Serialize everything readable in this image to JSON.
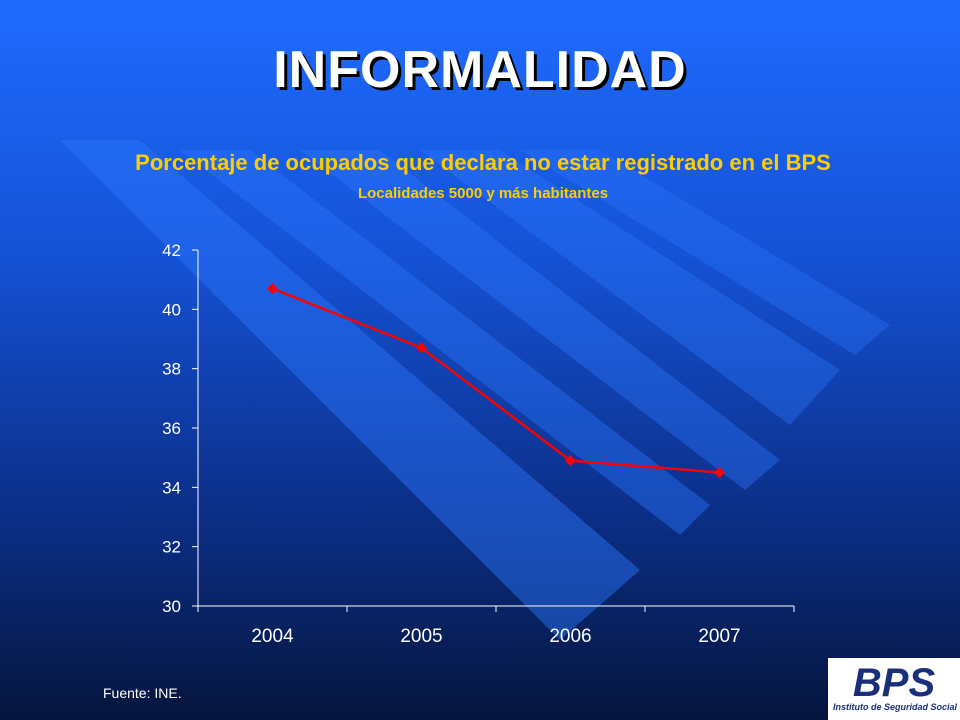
{
  "slide": {
    "title": "INFORMALIDAD",
    "subtitle": "Porcentaje de ocupados que declara no estar registrado en el BPS",
    "subtitle2": "Localidades 5000 y más habitantes",
    "source": "Fuente: INE.",
    "logo_text": "BPS",
    "logo_caption": "Instituto de Seguridad Social"
  },
  "colors": {
    "background_top": "#1f6bff",
    "background_bottom": "#05153d",
    "title": "#ffffff",
    "subtitle": "#ffcc00",
    "series": "#ff0000",
    "axis": "#ffffff",
    "logo": "#1a2f7a"
  },
  "chart_data": {
    "type": "line",
    "categories": [
      "2004",
      "2005",
      "2006",
      "2007"
    ],
    "series": [
      {
        "values": [
          40.7,
          38.7,
          34.9,
          34.5
        ],
        "marker": "diamond"
      }
    ],
    "ylim": [
      30,
      42
    ],
    "yticks": [
      "30",
      "32",
      "34",
      "36",
      "38",
      "40",
      "42"
    ],
    "grid": false,
    "legend": "none"
  }
}
